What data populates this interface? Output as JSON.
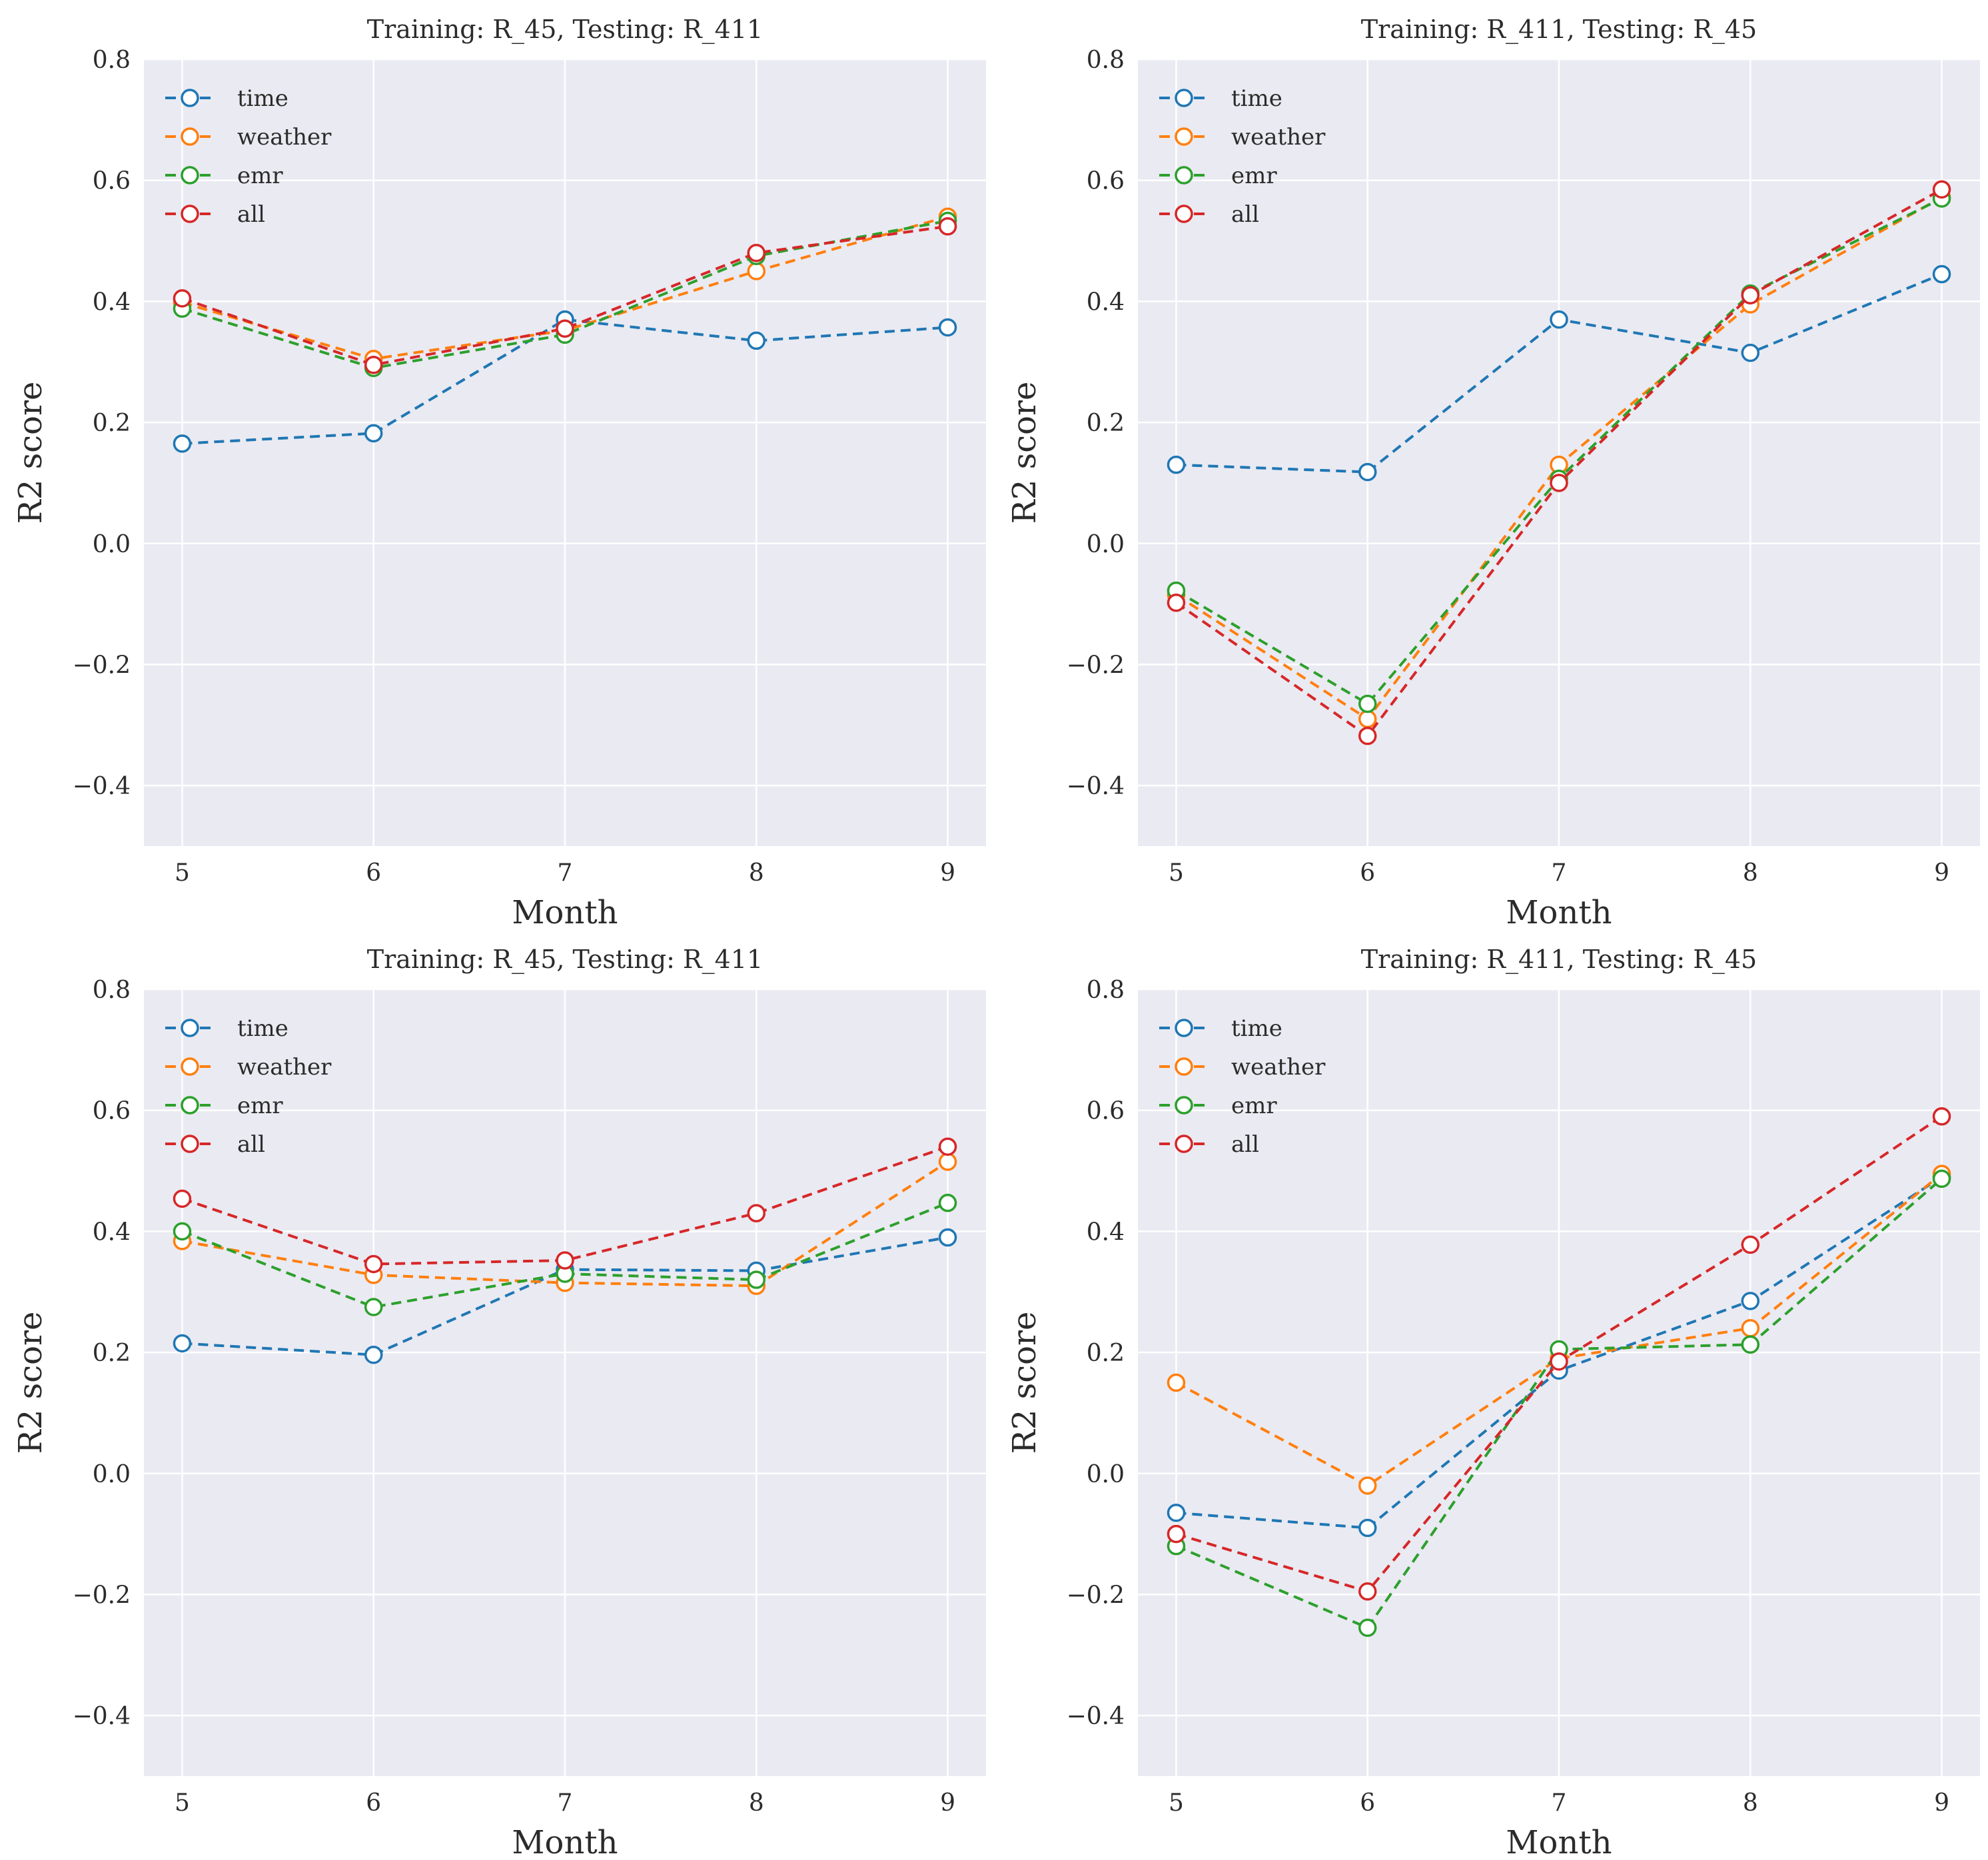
{
  "figure": {
    "background": "#ffffff",
    "plot_background": "#eaeaf2",
    "grid_color": "#ffffff",
    "text_color": "#2b2b2b",
    "series_colors": {
      "time": "#1f77b4",
      "weather": "#ff7f0e",
      "emr": "#2ca02c",
      "all": "#d62728"
    }
  },
  "chart_data": [
    {
      "id": "top-left",
      "type": "line",
      "title": "Training: R_45, Testing: R_411",
      "xlabel": "Month",
      "ylabel": "R2 score",
      "x": [
        5,
        6,
        7,
        8,
        9
      ],
      "xlim": [
        4.8,
        9.2
      ],
      "ylim": [
        -0.5,
        0.8
      ],
      "yticks": [
        0.8,
        0.6,
        0.4,
        0.2,
        0.0,
        -0.2,
        -0.4
      ],
      "grid": true,
      "legend_position": "upper left",
      "line_style": "dashed",
      "marker": "open-circle",
      "legend": [
        "time",
        "weather",
        "emr",
        "all"
      ],
      "series": [
        {
          "name": "time",
          "values": [
            0.165,
            0.182,
            0.37,
            0.335,
            0.357
          ]
        },
        {
          "name": "weather",
          "values": [
            0.398,
            0.305,
            0.352,
            0.45,
            0.54
          ]
        },
        {
          "name": "emr",
          "values": [
            0.388,
            0.29,
            0.345,
            0.475,
            0.533
          ]
        },
        {
          "name": "all",
          "values": [
            0.405,
            0.295,
            0.355,
            0.48,
            0.524
          ]
        }
      ]
    },
    {
      "id": "top-right",
      "type": "line",
      "title": "Training: R_411, Testing: R_45",
      "xlabel": "Month",
      "ylabel": "R2 score",
      "x": [
        5,
        6,
        7,
        8,
        9
      ],
      "xlim": [
        4.8,
        9.2
      ],
      "ylim": [
        -0.5,
        0.8
      ],
      "yticks": [
        0.8,
        0.6,
        0.4,
        0.2,
        0.0,
        -0.2,
        -0.4
      ],
      "grid": true,
      "legend_position": "upper left",
      "line_style": "dashed",
      "marker": "open-circle",
      "legend": [
        "time",
        "weather",
        "emr",
        "all"
      ],
      "series": [
        {
          "name": "time",
          "values": [
            0.13,
            0.118,
            0.37,
            0.315,
            0.445
          ]
        },
        {
          "name": "weather",
          "values": [
            -0.085,
            -0.29,
            0.13,
            0.395,
            0.572
          ]
        },
        {
          "name": "emr",
          "values": [
            -0.078,
            -0.265,
            0.107,
            0.413,
            0.57
          ]
        },
        {
          "name": "all",
          "values": [
            -0.098,
            -0.318,
            0.1,
            0.41,
            0.585
          ]
        }
      ]
    },
    {
      "id": "bottom-left",
      "type": "line",
      "title": "Training: R_45, Testing: R_411",
      "xlabel": "Month",
      "ylabel": "R2 score",
      "x": [
        5,
        6,
        7,
        8,
        9
      ],
      "xlim": [
        4.8,
        9.2
      ],
      "ylim": [
        -0.5,
        0.8
      ],
      "yticks": [
        0.8,
        0.6,
        0.4,
        0.2,
        0.0,
        -0.2,
        -0.4
      ],
      "grid": true,
      "legend_position": "upper left",
      "line_style": "dashed",
      "marker": "open-circle",
      "legend": [
        "time",
        "weather",
        "emr",
        "all"
      ],
      "series": [
        {
          "name": "time",
          "values": [
            0.215,
            0.196,
            0.337,
            0.335,
            0.39
          ]
        },
        {
          "name": "weather",
          "values": [
            0.384,
            0.328,
            0.315,
            0.31,
            0.515
          ]
        },
        {
          "name": "emr",
          "values": [
            0.4,
            0.275,
            0.33,
            0.32,
            0.447
          ]
        },
        {
          "name": "all",
          "values": [
            0.454,
            0.346,
            0.352,
            0.43,
            0.54
          ]
        }
      ]
    },
    {
      "id": "bottom-right",
      "type": "line",
      "title": "Training: R_411, Testing: R_45",
      "xlabel": "Month",
      "ylabel": "R2 score",
      "x": [
        5,
        6,
        7,
        8,
        9
      ],
      "xlim": [
        4.8,
        9.2
      ],
      "ylim": [
        -0.5,
        0.8
      ],
      "yticks": [
        0.8,
        0.6,
        0.4,
        0.2,
        0.0,
        -0.2,
        -0.4
      ],
      "grid": true,
      "legend_position": "upper left",
      "line_style": "dashed",
      "marker": "open-circle",
      "legend": [
        "time",
        "weather",
        "emr",
        "all"
      ],
      "series": [
        {
          "name": "time",
          "values": [
            -0.065,
            -0.09,
            0.17,
            0.285,
            0.49
          ]
        },
        {
          "name": "weather",
          "values": [
            0.15,
            -0.02,
            0.19,
            0.24,
            0.495
          ]
        },
        {
          "name": "emr",
          "values": [
            -0.12,
            -0.255,
            0.205,
            0.213,
            0.487
          ]
        },
        {
          "name": "all",
          "values": [
            -0.1,
            -0.195,
            0.185,
            0.378,
            0.59
          ]
        }
      ]
    }
  ]
}
